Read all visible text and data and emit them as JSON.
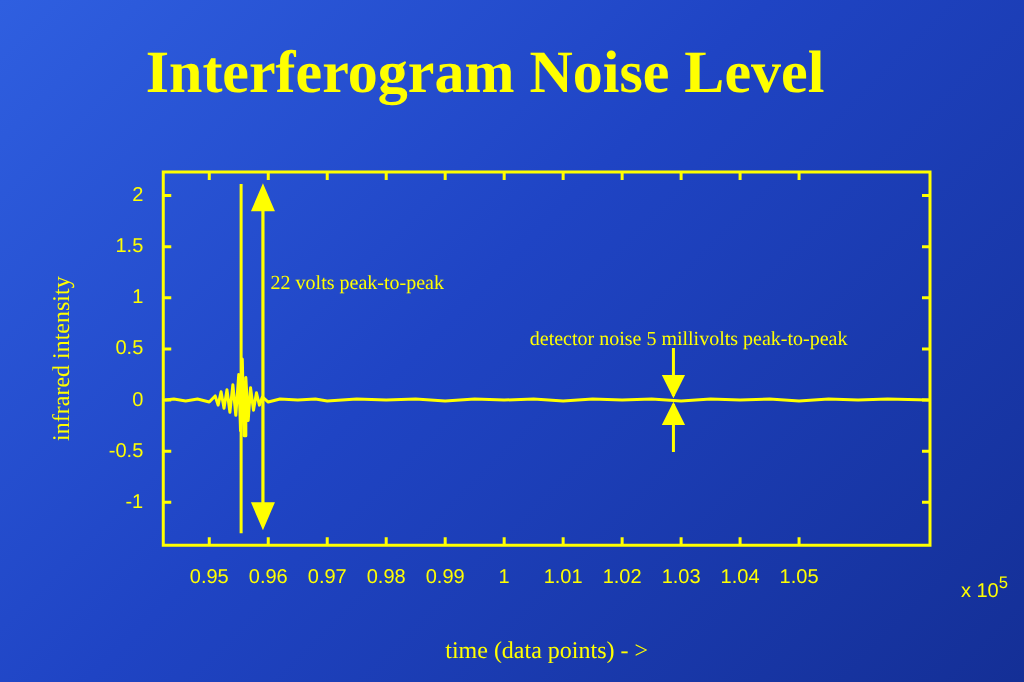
{
  "chart_data": {
    "type": "line",
    "title": "Interferogram Noise Level",
    "xlabel": "time (data points) - >",
    "ylabel": "infrared intensity",
    "x": [
      0.9425,
      0.944,
      0.946,
      0.948,
      0.95,
      0.951,
      0.9515,
      0.952,
      0.9525,
      0.953,
      0.9535,
      0.954,
      0.9545,
      0.955,
      0.9553,
      0.9556,
      0.9559,
      0.9562,
      0.9566,
      0.957,
      0.9575,
      0.958,
      0.9585,
      0.959,
      0.96,
      0.962,
      0.965,
      0.968,
      0.97,
      0.975,
      0.98,
      0.985,
      0.99,
      0.995,
      1.0,
      1.005,
      1.01,
      1.015,
      1.02,
      1.025,
      1.03,
      1.035,
      1.04,
      1.045,
      1.05,
      1.055,
      1.06,
      1.065,
      1.072
    ],
    "series": [
      {
        "color": "#ffff00",
        "values": [
          0,
          0.01,
          -0.01,
          0.01,
          -0.02,
          0.04,
          -0.05,
          0.08,
          -0.08,
          0.1,
          -0.12,
          0.15,
          -0.15,
          0.25,
          -0.3,
          0.4,
          -0.35,
          0.22,
          -0.2,
          0.12,
          -0.1,
          0.07,
          -0.05,
          0.03,
          -0.02,
          0.01,
          0,
          0.01,
          -0.01,
          0.01,
          0,
          0.01,
          -0.01,
          0.01,
          0,
          0.01,
          -0.01,
          0.01,
          0,
          0.01,
          -0.01,
          0.01,
          0,
          0.01,
          -0.01,
          0.01,
          0,
          0.01,
          0
        ]
      }
    ],
    "xlim": [
      0.9422,
      1.0722
    ],
    "xticks": [
      0.95,
      0.96,
      0.97,
      0.98,
      0.99,
      1,
      1.01,
      1.02,
      1.03,
      1.04,
      1.05
    ],
    "ylim": [
      -1.42,
      2.23
    ],
    "yticks": [
      -1,
      -0.5,
      0,
      0.5,
      1,
      1.5,
      2
    ],
    "ref_lines": [
      {
        "axis": "x",
        "value": 0.9554,
        "color": "#ffff00"
      }
    ],
    "annotations": [
      "22 volts peak-to-peak",
      {
        "text": "detector noise 5 millivolts peak-to-peak",
        "x": 1.0287,
        "y": 0
      },
      "x 10$^{5}$"
    ],
    "grid": false,
    "legend": false,
    "marker": "none",
    "line_style": "solid"
  }
}
